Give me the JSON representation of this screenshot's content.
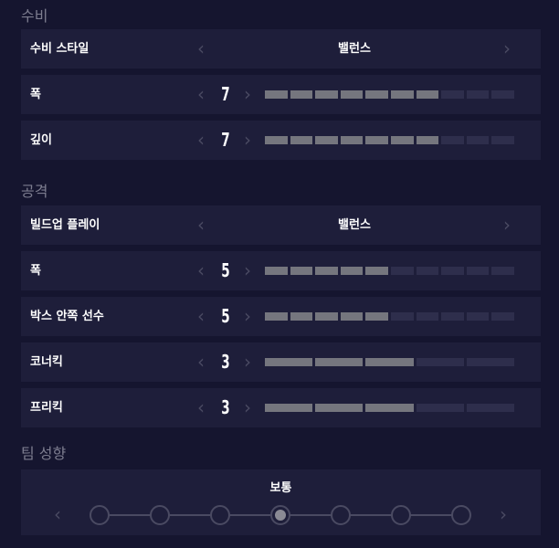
{
  "defense": {
    "title": "수비",
    "style": {
      "label": "수비 스타일",
      "value": "밸런스"
    },
    "width": {
      "label": "폭",
      "value": "7",
      "level": 7,
      "segments": 10
    },
    "depth": {
      "label": "깊이",
      "value": "7",
      "level": 7,
      "segments": 10
    }
  },
  "attack": {
    "title": "공격",
    "buildup": {
      "label": "빌드업 플레이",
      "value": "밸런스"
    },
    "width": {
      "label": "폭",
      "value": "5",
      "level": 5,
      "segments": 10
    },
    "box": {
      "label": "박스 안쪽 선수",
      "value": "5",
      "level": 5,
      "segments": 10
    },
    "corner": {
      "label": "코너킥",
      "value": "3",
      "level": 3,
      "segments": 5
    },
    "freekick": {
      "label": "프리킥",
      "value": "3",
      "level": 3,
      "segments": 5
    }
  },
  "team": {
    "title": "팀 성향",
    "value": "보통",
    "selected_index": 3,
    "steps": 7
  },
  "icons": {
    "left": "‹",
    "right": "›"
  },
  "colors": {
    "background": "#15152f",
    "row": "#1e1e3a",
    "bar_filled": "#75767e",
    "bar_empty": "#2e2e4c"
  }
}
